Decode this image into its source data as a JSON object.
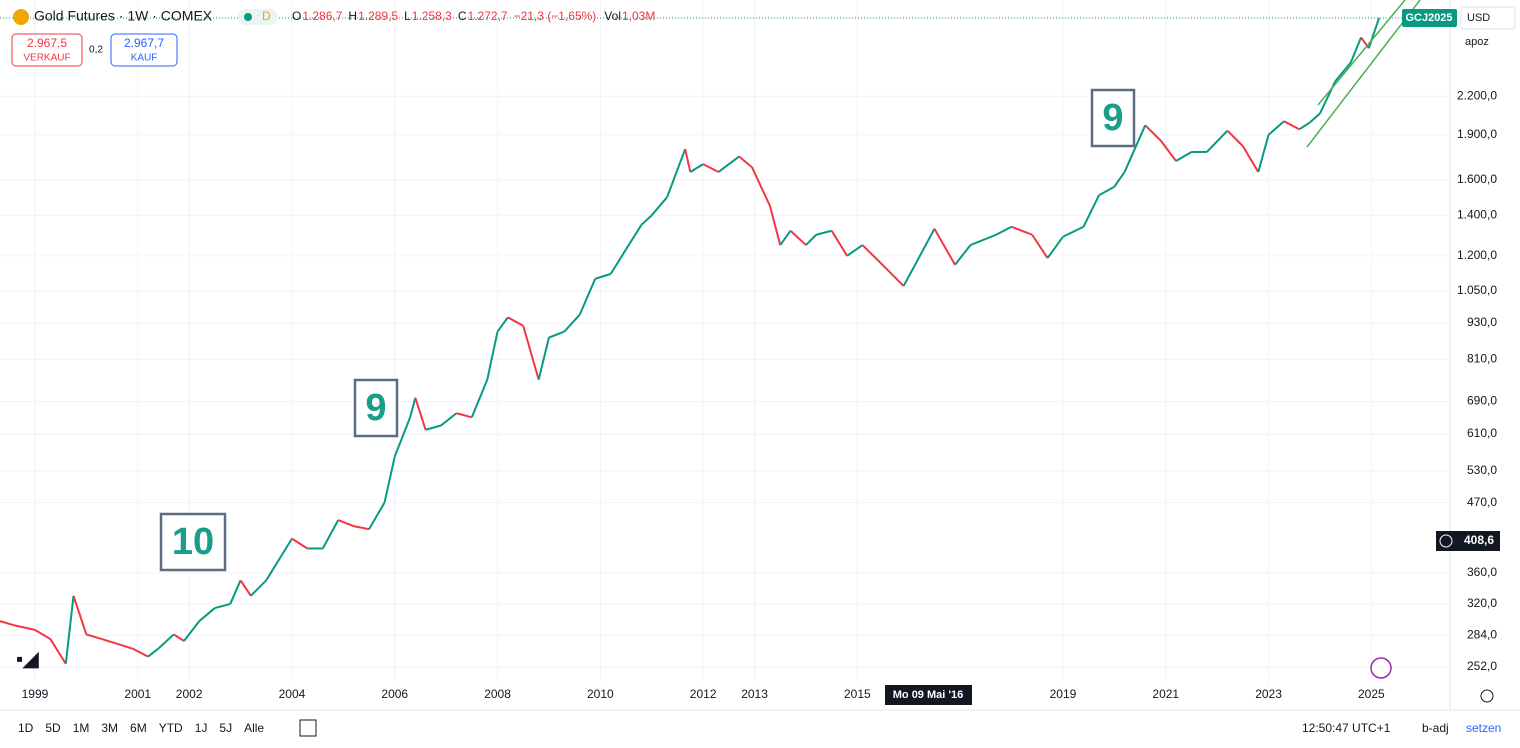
{
  "header": {
    "symbol": "Gold Futures · 1W · COMEX",
    "badge": "D",
    "ohlc": [
      {
        "key": "O",
        "value": "1.286,7"
      },
      {
        "key": "H",
        "value": "1.289,5"
      },
      {
        "key": "L",
        "value": "1.258,3"
      },
      {
        "key": "C",
        "value": "1.272,7"
      }
    ],
    "change": "−21,3 (−1,65%)",
    "vol_key": "Vol",
    "vol_value": "1,03M"
  },
  "trade": {
    "sell_price": "2.967,5",
    "sell_label": "VERKAUF",
    "spread": "0,2",
    "buy_price": "2.967,7",
    "buy_label": "KAUF"
  },
  "scale": {
    "currency": "USD",
    "mode": "apoz",
    "contract": "GCJ2025",
    "crosshair_price": "408,6",
    "crosshair_date": "Mo 09 Mai '16"
  },
  "toolbar": {
    "ranges": [
      "1D",
      "5D",
      "1M",
      "3M",
      "6M",
      "YTD",
      "1J",
      "5J",
      "Alle"
    ],
    "clock": "12:50:47 UTC+1",
    "adj": "b-adj",
    "set": "setzen"
  },
  "chart_data": {
    "type": "line",
    "log_scale": true,
    "grid": true,
    "up_color": "#089981",
    "down_color": "#f23645",
    "annotations": [
      "10",
      "9",
      "9"
    ],
    "x": [
      1998.3,
      1998.6,
      1999.0,
      1999.3,
      1999.6,
      1999.75,
      2000.0,
      2000.3,
      2000.6,
      2000.9,
      2001.2,
      2001.4,
      2001.7,
      2001.9,
      2002.2,
      2002.5,
      2002.8,
      2003.0,
      2003.2,
      2003.5,
      2003.8,
      2004.0,
      2004.3,
      2004.6,
      2004.9,
      2005.2,
      2005.5,
      2005.8,
      2006.0,
      2006.3,
      2006.4,
      2006.6,
      2006.9,
      2007.2,
      2007.5,
      2007.8,
      2008.0,
      2008.2,
      2008.5,
      2008.8,
      2009.0,
      2009.3,
      2009.6,
      2009.9,
      2010.2,
      2010.5,
      2010.8,
      2011.0,
      2011.3,
      2011.65,
      2011.75,
      2012.0,
      2012.3,
      2012.7,
      2012.95,
      2013.3,
      2013.5,
      2013.7,
      2014.0,
      2014.2,
      2014.5,
      2014.8,
      2015.1,
      2015.4,
      2015.9,
      2016.1,
      2016.5,
      2016.9,
      2017.2,
      2017.7,
      2018.0,
      2018.4,
      2018.7,
      2019.0,
      2019.4,
      2019.7,
      2020.0,
      2020.2,
      2020.6,
      2020.9,
      2021.2,
      2021.5,
      2021.8,
      2022.2,
      2022.5,
      2022.8,
      2023.0,
      2023.3,
      2023.6,
      2023.8,
      2024.0,
      2024.3,
      2024.6,
      2024.8,
      2024.95,
      2025.15
    ],
    "values": [
      300,
      295,
      290,
      280,
      255,
      330,
      285,
      280,
      275,
      270,
      262,
      270,
      285,
      278,
      300,
      315,
      320,
      350,
      330,
      350,
      385,
      410,
      395,
      395,
      440,
      430,
      425,
      470,
      560,
      650,
      700,
      620,
      630,
      660,
      650,
      750,
      900,
      950,
      920,
      750,
      880,
      900,
      960,
      1100,
      1120,
      1230,
      1350,
      1400,
      1500,
      1800,
      1650,
      1700,
      1650,
      1750,
      1680,
      1450,
      1250,
      1320,
      1250,
      1300,
      1320,
      1200,
      1250,
      1180,
      1070,
      1150,
      1330,
      1160,
      1250,
      1300,
      1340,
      1300,
      1190,
      1290,
      1340,
      1510,
      1560,
      1650,
      1970,
      1860,
      1720,
      1780,
      1780,
      1930,
      1820,
      1650,
      1900,
      2000,
      1940,
      1990,
      2060,
      2330,
      2500,
      2750,
      2640,
      2960
    ],
    "xlim": [
      1998.32,
      2026.53
    ],
    "ylim": [
      237,
      3170
    ],
    "xticks": [
      1999,
      2001,
      2002,
      2004,
      2006,
      2008,
      2010,
      2012,
      2013,
      2015,
      2019,
      2021,
      2023,
      2025
    ],
    "yticks": [
      {
        "value": 252,
        "label": "252,0"
      },
      {
        "value": 284,
        "label": "284,0"
      },
      {
        "value": 320,
        "label": "320,0"
      },
      {
        "value": 360,
        "label": "360,0"
      },
      {
        "value": 470,
        "label": "470,0"
      },
      {
        "value": 530,
        "label": "530,0"
      },
      {
        "value": 610,
        "label": "610,0"
      },
      {
        "value": 690,
        "label": "690,0"
      },
      {
        "value": 810,
        "label": "810,0"
      },
      {
        "value": 930,
        "label": "930,0"
      },
      {
        "value": 1050,
        "label": "1.050,0"
      },
      {
        "value": 1200,
        "label": "1.200,0"
      },
      {
        "value": 1400,
        "label": "1.400,0"
      },
      {
        "value": 1600,
        "label": "1.600,0"
      },
      {
        "value": 1900,
        "label": "1.900,0"
      },
      {
        "value": 2200,
        "label": "2.200,0"
      }
    ]
  }
}
